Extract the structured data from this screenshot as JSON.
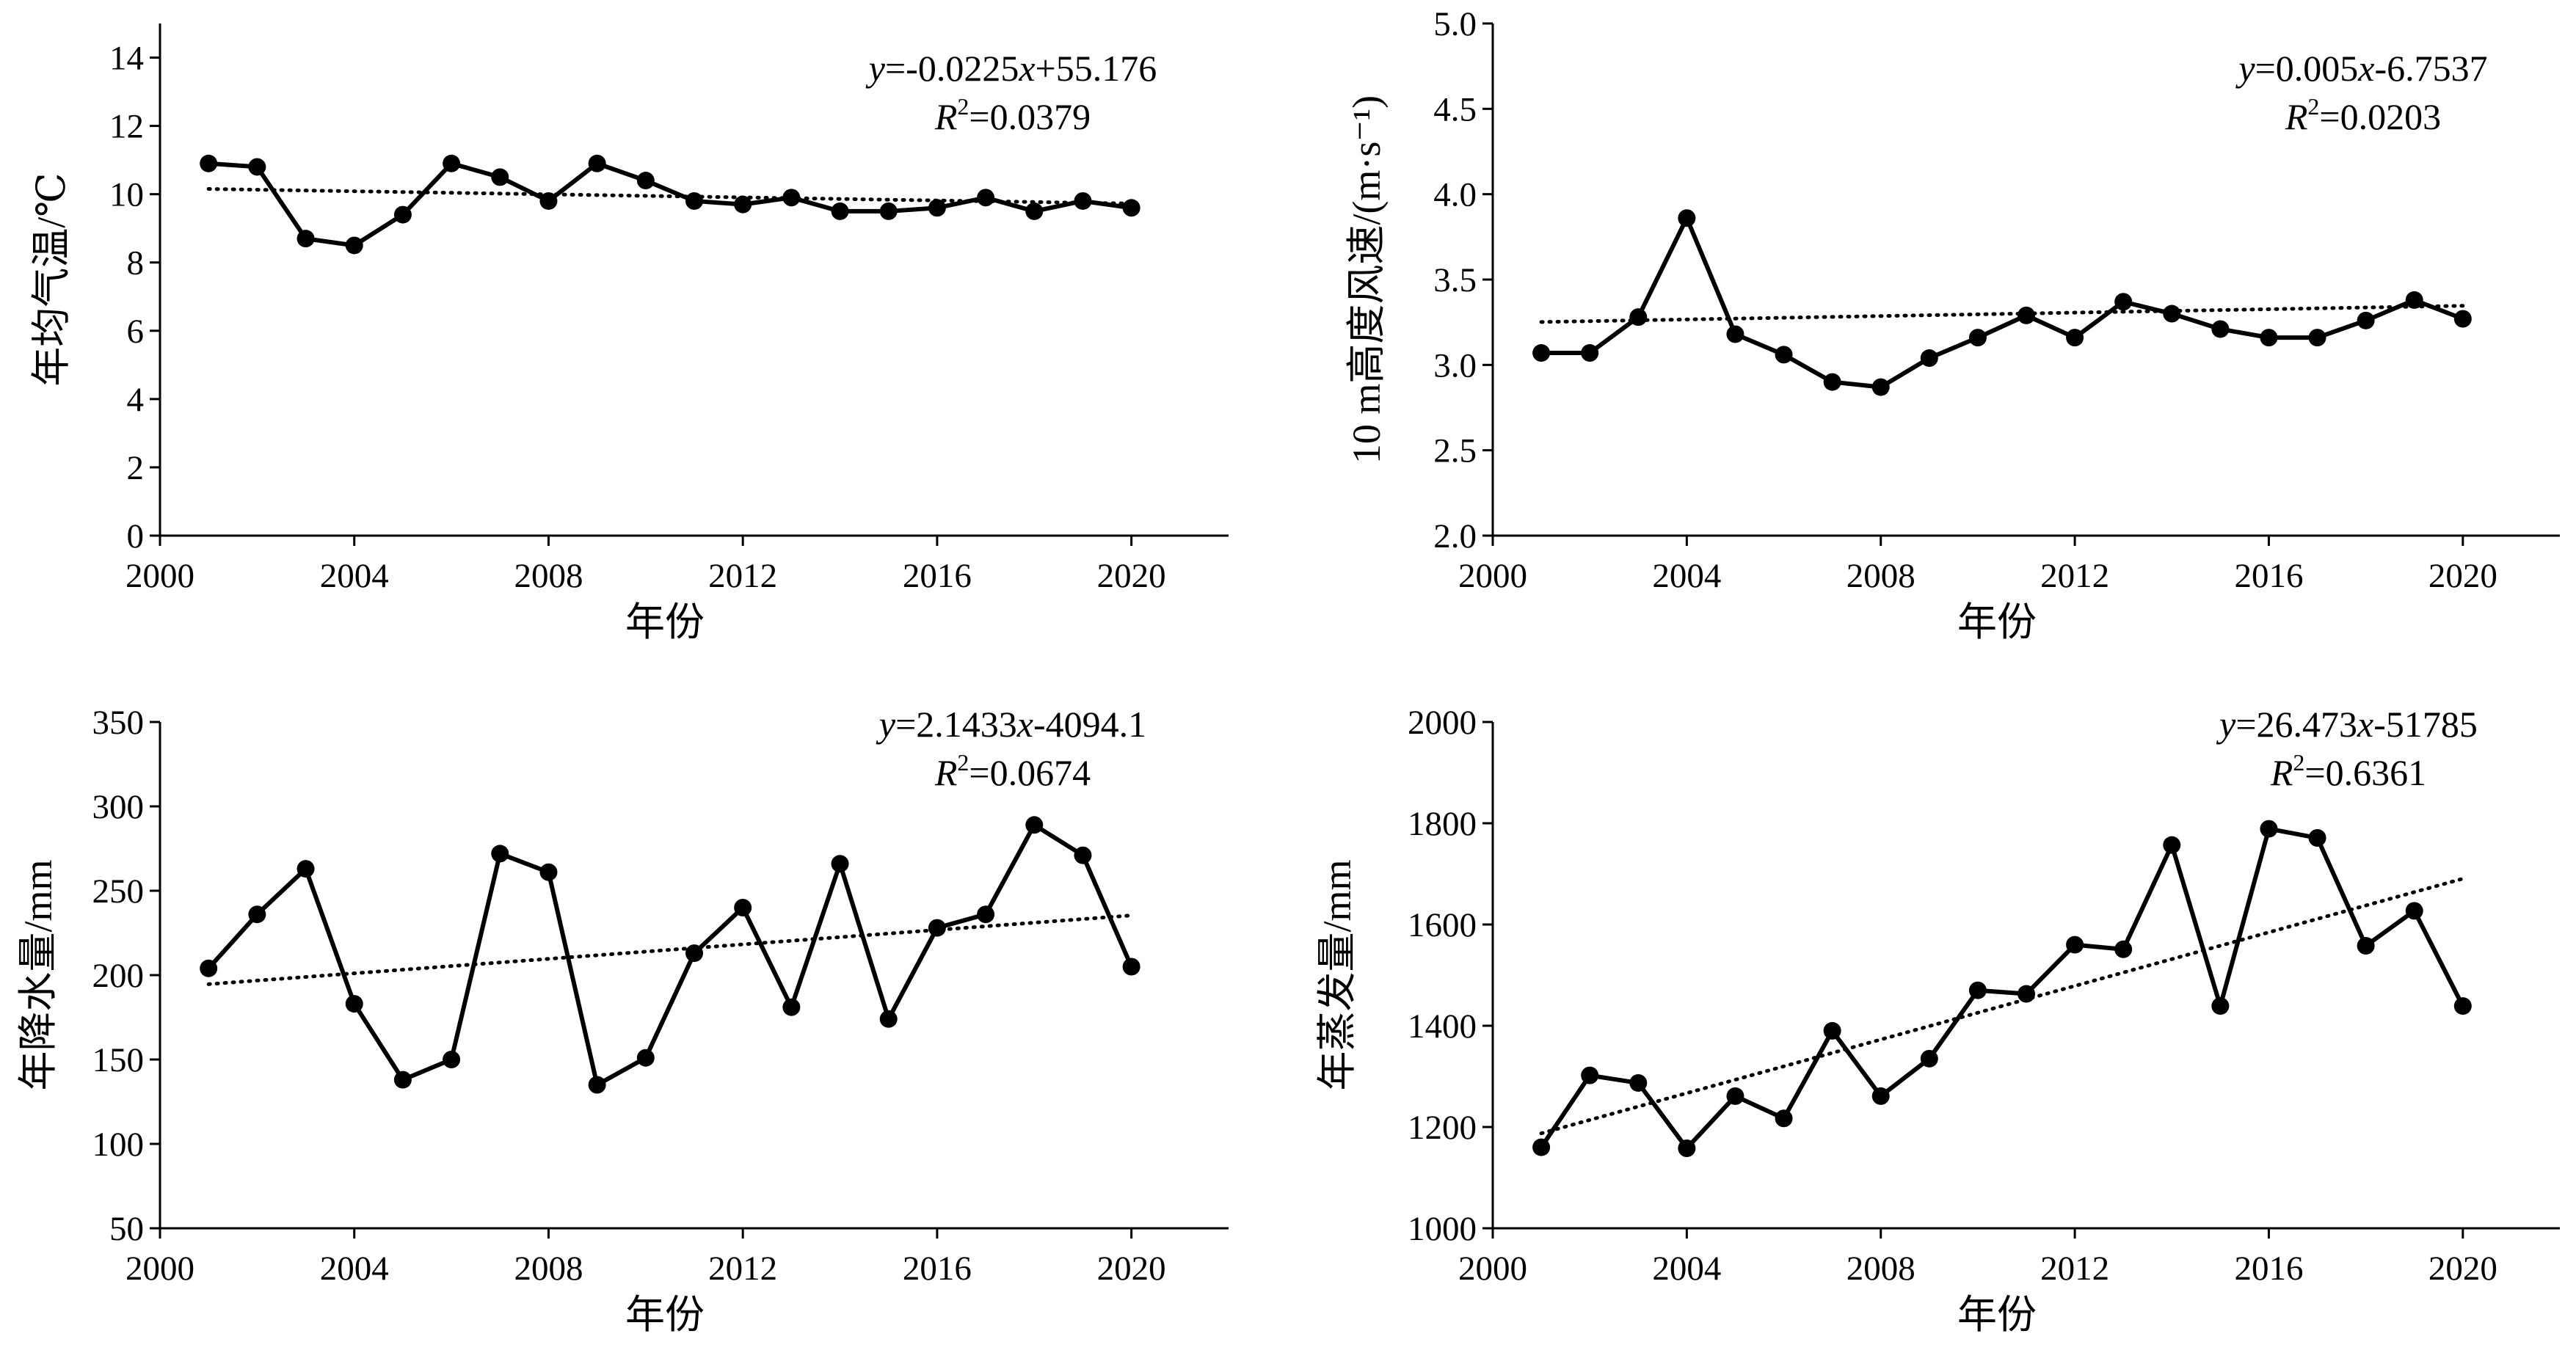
{
  "chart_data": [
    {
      "type": "line",
      "panel": "top-left",
      "xlabel": "年份",
      "ylabel": "年均气温/℃",
      "xlim": [
        2000,
        2022
      ],
      "ylim": [
        0,
        15
      ],
      "xticks": [
        2000,
        2004,
        2008,
        2012,
        2016,
        2020
      ],
      "yticks": [
        0,
        2,
        4,
        6,
        8,
        10,
        12,
        14
      ],
      "ytick_decimals": 0,
      "x": [
        2001,
        2002,
        2003,
        2004,
        2005,
        2006,
        2007,
        2008,
        2009,
        2010,
        2011,
        2012,
        2013,
        2014,
        2015,
        2016,
        2017,
        2018,
        2019,
        2020
      ],
      "values": [
        10.9,
        10.8,
        8.7,
        8.5,
        9.4,
        10.9,
        10.5,
        9.8,
        10.9,
        10.4,
        9.8,
        9.7,
        9.9,
        9.5,
        9.5,
        9.6,
        9.9,
        9.5,
        9.8,
        9.6
      ],
      "trend": {
        "slope": -0.0225,
        "intercept": 55.176
      },
      "equation": {
        "y": "y",
        "eq_body": "=-0.0225",
        "x": "x",
        "eq_tail": "+55.176",
        "r_letter": "R",
        "r_sup": "2",
        "r_value": "=0.0379"
      }
    },
    {
      "type": "line",
      "panel": "top-right",
      "xlabel": "年份",
      "ylabel": "10 m高度风速/(m·s⁻¹)",
      "xlim": [
        2000,
        2022
      ],
      "ylim": [
        2.0,
        5.0
      ],
      "xticks": [
        2000,
        2004,
        2008,
        2012,
        2016,
        2020
      ],
      "yticks": [
        2.0,
        2.5,
        3.0,
        3.5,
        4.0,
        4.5,
        5.0
      ],
      "ytick_decimals": 1,
      "x": [
        2001,
        2002,
        2003,
        2004,
        2005,
        2006,
        2007,
        2008,
        2009,
        2010,
        2011,
        2012,
        2013,
        2014,
        2015,
        2016,
        2017,
        2018,
        2019,
        2020
      ],
      "values": [
        3.07,
        3.07,
        3.28,
        3.86,
        3.18,
        3.06,
        2.9,
        2.87,
        3.04,
        3.16,
        3.29,
        3.16,
        3.37,
        3.3,
        3.21,
        3.16,
        3.16,
        3.26,
        3.38,
        3.27
      ],
      "trend": {
        "slope": 0.005,
        "intercept": -6.7537
      },
      "equation": {
        "y": "y",
        "eq_body": "=0.005",
        "x": "x",
        "eq_tail": "-6.7537",
        "r_letter": "R",
        "r_sup": "2",
        "r_value": "=0.0203"
      }
    },
    {
      "type": "line",
      "panel": "bottom-left",
      "xlabel": "年份",
      "ylabel": "年降水量/mm",
      "xlim": [
        2000,
        2022
      ],
      "ylim": [
        50,
        350
      ],
      "xticks": [
        2000,
        2004,
        2008,
        2012,
        2016,
        2020
      ],
      "yticks": [
        50,
        100,
        150,
        200,
        250,
        300,
        350
      ],
      "ytick_decimals": 0,
      "x": [
        2001,
        2002,
        2003,
        2004,
        2005,
        2006,
        2007,
        2008,
        2009,
        2010,
        2011,
        2012,
        2013,
        2014,
        2015,
        2016,
        2017,
        2018,
        2019,
        2020
      ],
      "values": [
        204,
        236,
        263,
        183,
        138,
        150,
        272,
        261,
        135,
        151,
        213,
        240,
        181,
        266,
        174,
        228,
        236,
        289,
        271,
        205
      ],
      "trend": {
        "slope": 2.1433,
        "intercept": -4094.1
      },
      "equation": {
        "y": "y",
        "eq_body": "=2.1433",
        "x": "x",
        "eq_tail": "-4094.1",
        "r_letter": "R",
        "r_sup": "2",
        "r_value": "=0.0674"
      }
    },
    {
      "type": "line",
      "panel": "bottom-right",
      "xlabel": "年份",
      "ylabel": "年蒸发量/mm",
      "xlim": [
        2000,
        2022
      ],
      "ylim": [
        1000,
        2000
      ],
      "xticks": [
        2000,
        2004,
        2008,
        2012,
        2016,
        2020
      ],
      "yticks": [
        1000,
        1200,
        1400,
        1600,
        1800,
        2000
      ],
      "ytick_decimals": 0,
      "x": [
        2001,
        2002,
        2003,
        2004,
        2005,
        2006,
        2007,
        2008,
        2009,
        2010,
        2011,
        2012,
        2013,
        2014,
        2015,
        2016,
        2017,
        2018,
        2019,
        2020
      ],
      "values": [
        1160,
        1302,
        1287,
        1158,
        1261,
        1217,
        1390,
        1261,
        1335,
        1470,
        1463,
        1560,
        1551,
        1757,
        1439,
        1789,
        1771,
        1558,
        1627,
        1439
      ],
      "trend": {
        "slope": 26.473,
        "intercept": -51785
      },
      "equation": {
        "y": "y",
        "eq_body": "=26.473",
        "x": "x",
        "eq_tail": "-51785",
        "r_letter": "R",
        "r_sup": "2",
        "r_value": "=0.6361"
      }
    }
  ]
}
